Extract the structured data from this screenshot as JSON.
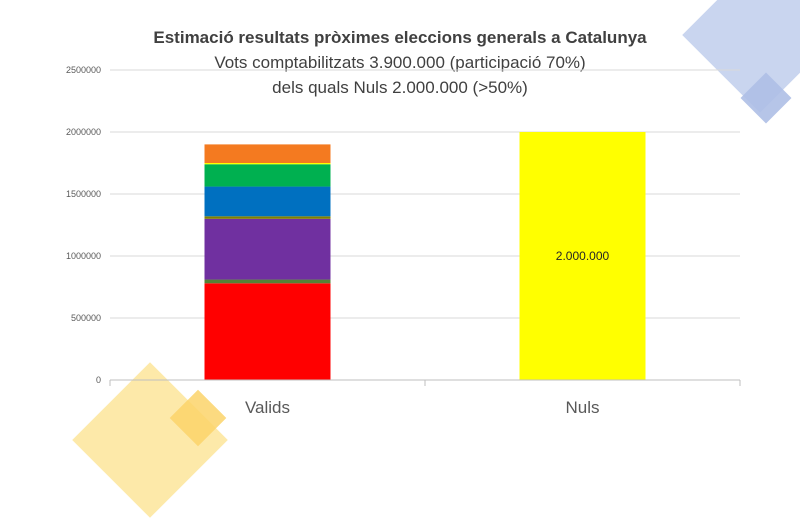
{
  "colors": {
    "gridline": "#d9d9d9",
    "axis": "#bfbfbf",
    "tick_text": "#595959",
    "category_text": "#595959",
    "deco_blue": "#c9d5ef",
    "deco_yellow": "#fde9a9"
  },
  "chart_data": {
    "type": "bar",
    "stacked": true,
    "title": "Estimació resultats pròximes eleccions generals a Catalunya",
    "subtitle_lines": [
      "Vots comptabilitzats 3.900.000 (participació 70%)",
      "dels quals Nuls 2.000.000  (>50%)"
    ],
    "xlabel": "",
    "ylabel": "",
    "ylim": [
      0,
      2500000
    ],
    "yticks": [
      0,
      500000,
      1000000,
      1500000,
      2000000,
      2500000
    ],
    "ytick_labels": [
      "0",
      "500000",
      "1000000",
      "1500000",
      "2000000",
      "2500000"
    ],
    "grid": true,
    "legend": "none",
    "categories": [
      "Valids",
      "Nuls"
    ],
    "series": [
      {
        "color": "#ff0000",
        "values": [
          780000,
          0
        ]
      },
      {
        "color": "#548235",
        "values": [
          30000,
          0
        ]
      },
      {
        "color": "#7030a0",
        "values": [
          490000,
          0
        ]
      },
      {
        "color": "#808000",
        "values": [
          20000,
          0
        ]
      },
      {
        "color": "#0070c0",
        "values": [
          240000,
          0
        ]
      },
      {
        "color": "#00b050",
        "values": [
          180000,
          0
        ]
      },
      {
        "color": "#ffff00",
        "values": [
          10000,
          2000000
        ]
      },
      {
        "color": "#f47a20",
        "values": [
          150000,
          0
        ]
      }
    ],
    "data_labels": [
      {
        "category": "Nuls",
        "text": "2.000.000"
      }
    ]
  }
}
